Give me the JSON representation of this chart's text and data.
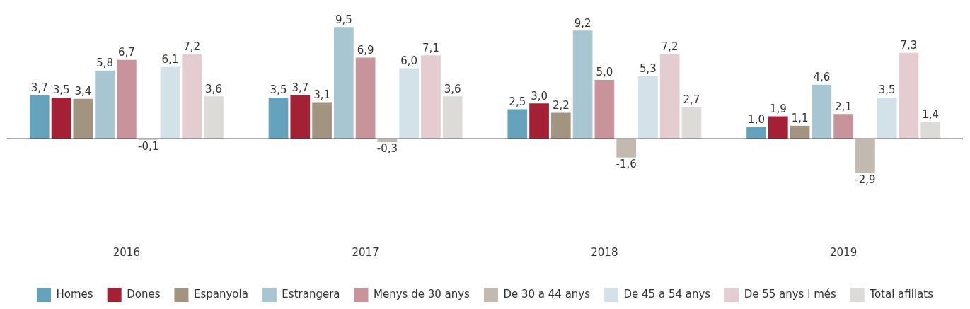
{
  "chart_data": {
    "type": "bar",
    "categories": [
      "2016",
      "2017",
      "2018",
      "2019"
    ],
    "legend": "bottom",
    "grid": false,
    "tick_labels": "x",
    "series": [
      {
        "name": "Homes",
        "color": "#64a3bb",
        "values": [
          3.7,
          3.5,
          2.5,
          1.0
        ],
        "value_labels": [
          "3,7",
          "3,5",
          "2,5",
          "1,0"
        ]
      },
      {
        "name": "Dones",
        "color": "#a32035",
        "values": [
          3.5,
          3.7,
          3.0,
          1.9
        ],
        "value_labels": [
          "3,5",
          "3,7",
          "3,0",
          "1,9"
        ]
      },
      {
        "name": "Espanyola",
        "color": "#a39482",
        "values": [
          3.4,
          3.1,
          2.2,
          1.1
        ],
        "value_labels": [
          "3,4",
          "3,1",
          "2,2",
          "1,1"
        ]
      },
      {
        "name": "Estrangera",
        "color": "#a8c6d2",
        "values": [
          5.8,
          9.5,
          9.2,
          4.6
        ],
        "value_labels": [
          "5,8",
          "9,5",
          "9,2",
          "4,6"
        ]
      },
      {
        "name": "Menys de 30 anys",
        "color": "#c9939b",
        "values": [
          6.7,
          6.9,
          5.0,
          2.1
        ],
        "value_labels": [
          "6,7",
          "6,9",
          "5,0",
          "2,1"
        ]
      },
      {
        "name": "De 30 a 44 anys",
        "color": "#c2bab1",
        "values": [
          -0.1,
          -0.3,
          -1.6,
          -2.9
        ],
        "value_labels": [
          "-0,1",
          "-0,3",
          "-1,6",
          "-2,9"
        ]
      },
      {
        "name": "De 45 a 54 anys",
        "color": "#d3e2e9",
        "values": [
          6.1,
          6.0,
          5.3,
          3.5
        ],
        "value_labels": [
          "6,1",
          "6,0",
          "5,3",
          "3,5"
        ]
      },
      {
        "name": "De 55 anys i més",
        "color": "#e4ccd0",
        "values": [
          7.2,
          7.1,
          7.2,
          7.3
        ],
        "value_labels": [
          "7,2",
          "7,1",
          "7,2",
          "7,3"
        ]
      },
      {
        "name": "Total afiliats",
        "color": "#dcdbd7",
        "values": [
          3.6,
          3.6,
          2.7,
          1.4
        ],
        "value_labels": [
          "3,6",
          "3,6",
          "2,7",
          "1,4"
        ]
      }
    ]
  }
}
